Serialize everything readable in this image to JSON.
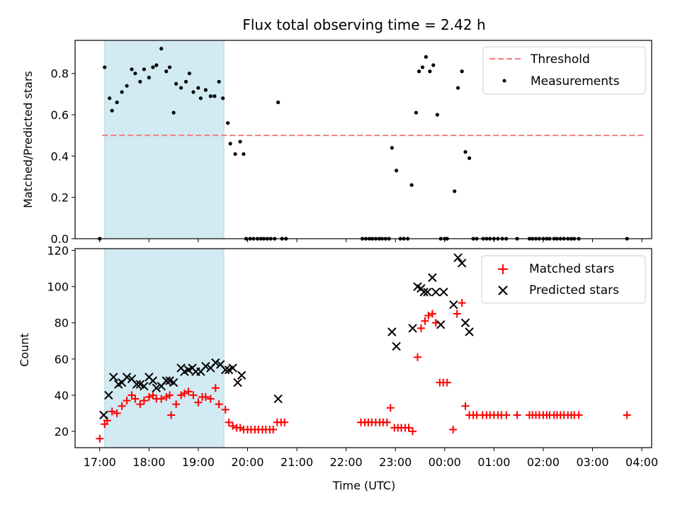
{
  "figure": {
    "title": "Flux total observing time = 2.42 h",
    "x_tick_labels": [
      "17:00",
      "18:00",
      "19:00",
      "20:00",
      "21:00",
      "22:00",
      "23:00",
      "00:00",
      "01:00",
      "02:00",
      "03:00",
      "04:00"
    ],
    "xlabel": "Time (UTC)",
    "colors": {
      "threshold": "#f27c7c",
      "measurements": "#000000",
      "matched": "#ff0000",
      "predicted": "#000000",
      "span": "#add8e6"
    }
  },
  "chart_data": [
    {
      "type": "scatter",
      "ylabel": "Matched/Predicted stars",
      "xlim": [
        16.5,
        28.2
      ],
      "ylim": [
        0,
        0.96
      ],
      "yticks": [
        "0.0",
        "0.2",
        "0.4",
        "0.6",
        "0.8"
      ],
      "ytick_values": [
        0,
        0.2,
        0.4,
        0.6,
        0.8
      ],
      "highlight_span": [
        17.1,
        19.52
      ],
      "legend": {
        "placement": "upper right",
        "entries": [
          "Threshold",
          "Measurements"
        ]
      },
      "series": [
        {
          "name": "Threshold",
          "kind": "line",
          "x": [
            17.05,
            28.05
          ],
          "y": [
            0.5,
            0.5
          ]
        },
        {
          "name": "Measurements",
          "kind": "scatter",
          "points": [
            [
              17.0,
              0.0
            ],
            [
              17.1,
              0.83
            ],
            [
              17.2,
              0.68
            ],
            [
              17.25,
              0.62
            ],
            [
              17.35,
              0.66
            ],
            [
              17.45,
              0.71
            ],
            [
              17.55,
              0.74
            ],
            [
              17.65,
              0.82
            ],
            [
              17.72,
              0.8
            ],
            [
              17.82,
              0.76
            ],
            [
              17.9,
              0.82
            ],
            [
              18.0,
              0.78
            ],
            [
              18.08,
              0.83
            ],
            [
              18.15,
              0.84
            ],
            [
              18.25,
              0.92
            ],
            [
              18.35,
              0.81
            ],
            [
              18.42,
              0.83
            ],
            [
              18.5,
              0.61
            ],
            [
              18.55,
              0.75
            ],
            [
              18.65,
              0.73
            ],
            [
              18.75,
              0.76
            ],
            [
              18.82,
              0.8
            ],
            [
              18.9,
              0.71
            ],
            [
              19.0,
              0.73
            ],
            [
              19.05,
              0.68
            ],
            [
              19.15,
              0.72
            ],
            [
              19.25,
              0.69
            ],
            [
              19.33,
              0.69
            ],
            [
              19.42,
              0.76
            ],
            [
              19.5,
              0.68
            ],
            [
              19.6,
              0.56
            ],
            [
              19.65,
              0.46
            ],
            [
              19.75,
              0.41
            ],
            [
              19.85,
              0.47
            ],
            [
              19.92,
              0.41
            ],
            [
              19.97,
              0.0
            ],
            [
              20.05,
              0.0
            ],
            [
              20.12,
              0.0
            ],
            [
              20.2,
              0.0
            ],
            [
              20.27,
              0.0
            ],
            [
              20.33,
              0.0
            ],
            [
              20.4,
              0.0
            ],
            [
              20.47,
              0.0
            ],
            [
              20.55,
              0.0
            ],
            [
              20.62,
              0.66
            ],
            [
              20.7,
              0.0
            ],
            [
              20.78,
              0.0
            ],
            [
              22.33,
              0.0
            ],
            [
              22.4,
              0.0
            ],
            [
              22.47,
              0.0
            ],
            [
              22.53,
              0.0
            ],
            [
              22.6,
              0.0
            ],
            [
              22.67,
              0.0
            ],
            [
              22.73,
              0.0
            ],
            [
              22.8,
              0.0
            ],
            [
              22.87,
              0.0
            ],
            [
              22.93,
              0.44
            ],
            [
              23.02,
              0.33
            ],
            [
              23.1,
              0.0
            ],
            [
              23.17,
              0.0
            ],
            [
              23.25,
              0.0
            ],
            [
              23.33,
              0.26
            ],
            [
              23.42,
              0.61
            ],
            [
              23.48,
              0.81
            ],
            [
              23.55,
              0.83
            ],
            [
              23.62,
              0.88
            ],
            [
              23.7,
              0.81
            ],
            [
              23.77,
              0.84
            ],
            [
              23.85,
              0.6
            ],
            [
              23.92,
              0.0
            ],
            [
              24.0,
              0.0
            ],
            [
              24.05,
              0.0
            ],
            [
              24.2,
              0.23
            ],
            [
              24.27,
              0.73
            ],
            [
              24.35,
              0.81
            ],
            [
              24.42,
              0.42
            ],
            [
              24.5,
              0.39
            ],
            [
              24.58,
              0.0
            ],
            [
              24.65,
              0.0
            ],
            [
              24.78,
              0.0
            ],
            [
              24.85,
              0.0
            ],
            [
              24.92,
              0.0
            ],
            [
              25.0,
              0.0
            ],
            [
              25.08,
              0.0
            ],
            [
              25.17,
              0.0
            ],
            [
              25.25,
              0.0
            ],
            [
              25.47,
              0.0
            ],
            [
              25.72,
              0.0
            ],
            [
              25.78,
              0.0
            ],
            [
              25.85,
              0.0
            ],
            [
              25.92,
              0.0
            ],
            [
              26.0,
              0.0
            ],
            [
              26.07,
              0.0
            ],
            [
              26.13,
              0.0
            ],
            [
              26.22,
              0.0
            ],
            [
              26.28,
              0.0
            ],
            [
              26.35,
              0.0
            ],
            [
              26.42,
              0.0
            ],
            [
              26.5,
              0.0
            ],
            [
              26.57,
              0.0
            ],
            [
              26.63,
              0.0
            ],
            [
              26.72,
              0.0
            ],
            [
              27.7,
              0.0
            ]
          ]
        }
      ]
    },
    {
      "type": "scatter",
      "ylabel": "Count",
      "xlim": [
        16.5,
        28.2
      ],
      "ylim": [
        11,
        121
      ],
      "yticks": [
        "20",
        "40",
        "60",
        "80",
        "100",
        "120"
      ],
      "ytick_values": [
        20,
        40,
        60,
        80,
        100,
        120
      ],
      "highlight_span": [
        17.1,
        19.52
      ],
      "legend": {
        "placement": "upper right",
        "entries": [
          "Matched stars",
          "Predicted stars"
        ]
      },
      "series": [
        {
          "name": "Matched stars",
          "marker": "plus",
          "points": [
            [
              17.0,
              16
            ],
            [
              17.1,
              24
            ],
            [
              17.15,
              26
            ],
            [
              17.25,
              31
            ],
            [
              17.35,
              30
            ],
            [
              17.45,
              34
            ],
            [
              17.55,
              37
            ],
            [
              17.65,
              40
            ],
            [
              17.72,
              38
            ],
            [
              17.82,
              35
            ],
            [
              17.9,
              37
            ],
            [
              18.0,
              39
            ],
            [
              18.08,
              40
            ],
            [
              18.15,
              38
            ],
            [
              18.25,
              38
            ],
            [
              18.35,
              39
            ],
            [
              18.42,
              40
            ],
            [
              18.45,
              29
            ],
            [
              18.55,
              35
            ],
            [
              18.65,
              40
            ],
            [
              18.72,
              41
            ],
            [
              18.8,
              42
            ],
            [
              18.9,
              40
            ],
            [
              19.0,
              36
            ],
            [
              19.08,
              39
            ],
            [
              19.15,
              39
            ],
            [
              19.25,
              38
            ],
            [
              19.35,
              44
            ],
            [
              19.42,
              35
            ],
            [
              19.55,
              32
            ],
            [
              19.62,
              25
            ],
            [
              19.7,
              23
            ],
            [
              19.78,
              22
            ],
            [
              19.85,
              22
            ],
            [
              19.92,
              21
            ],
            [
              20.0,
              21
            ],
            [
              20.07,
              21
            ],
            [
              20.15,
              21
            ],
            [
              20.22,
              21
            ],
            [
              20.3,
              21
            ],
            [
              20.37,
              21
            ],
            [
              20.45,
              21
            ],
            [
              20.52,
              21
            ],
            [
              20.6,
              25
            ],
            [
              20.68,
              25
            ],
            [
              20.75,
              25
            ],
            [
              22.3,
              25
            ],
            [
              22.38,
              25
            ],
            [
              22.45,
              25
            ],
            [
              22.52,
              25
            ],
            [
              22.6,
              25
            ],
            [
              22.68,
              25
            ],
            [
              22.75,
              25
            ],
            [
              22.83,
              25
            ],
            [
              22.9,
              33
            ],
            [
              22.98,
              22
            ],
            [
              23.05,
              22
            ],
            [
              23.12,
              22
            ],
            [
              23.2,
              22
            ],
            [
              23.27,
              22
            ],
            [
              23.35,
              20
            ],
            [
              23.45,
              61
            ],
            [
              23.52,
              77
            ],
            [
              23.6,
              81
            ],
            [
              23.67,
              84
            ],
            [
              23.75,
              85
            ],
            [
              23.82,
              80
            ],
            [
              23.9,
              47
            ],
            [
              23.97,
              47
            ],
            [
              24.05,
              47
            ],
            [
              24.17,
              21
            ],
            [
              24.25,
              85
            ],
            [
              24.35,
              91
            ],
            [
              24.42,
              34
            ],
            [
              24.5,
              29
            ],
            [
              24.58,
              29
            ],
            [
              24.65,
              29
            ],
            [
              24.77,
              29
            ],
            [
              24.85,
              29
            ],
            [
              24.92,
              29
            ],
            [
              25.0,
              29
            ],
            [
              25.08,
              29
            ],
            [
              25.15,
              29
            ],
            [
              25.25,
              29
            ],
            [
              25.47,
              29
            ],
            [
              25.72,
              29
            ],
            [
              25.78,
              29
            ],
            [
              25.85,
              29
            ],
            [
              25.92,
              29
            ],
            [
              26.0,
              29
            ],
            [
              26.07,
              29
            ],
            [
              26.13,
              29
            ],
            [
              26.22,
              29
            ],
            [
              26.28,
              29
            ],
            [
              26.35,
              29
            ],
            [
              26.42,
              29
            ],
            [
              26.5,
              29
            ],
            [
              26.57,
              29
            ],
            [
              26.63,
              29
            ],
            [
              26.72,
              29
            ],
            [
              27.7,
              29
            ]
          ]
        },
        {
          "name": "Predicted stars",
          "marker": "x",
          "points": [
            [
              17.08,
              29
            ],
            [
              17.18,
              40
            ],
            [
              17.28,
              50
            ],
            [
              17.38,
              46
            ],
            [
              17.45,
              47
            ],
            [
              17.55,
              50
            ],
            [
              17.65,
              49
            ],
            [
              17.75,
              46
            ],
            [
              17.82,
              46
            ],
            [
              17.9,
              45
            ],
            [
              18.0,
              50
            ],
            [
              18.08,
              48
            ],
            [
              18.15,
              44
            ],
            [
              18.25,
              45
            ],
            [
              18.35,
              48
            ],
            [
              18.42,
              48
            ],
            [
              18.5,
              47
            ],
            [
              18.65,
              55
            ],
            [
              18.72,
              53
            ],
            [
              18.8,
              54
            ],
            [
              18.88,
              55
            ],
            [
              18.95,
              53
            ],
            [
              19.05,
              53
            ],
            [
              19.15,
              56
            ],
            [
              19.25,
              55
            ],
            [
              19.35,
              58
            ],
            [
              19.45,
              57
            ],
            [
              19.55,
              54
            ],
            [
              19.62,
              54
            ],
            [
              19.7,
              55
            ],
            [
              19.8,
              47
            ],
            [
              19.88,
              51
            ],
            [
              20.62,
              38
            ],
            [
              22.93,
              75
            ],
            [
              23.02,
              67
            ],
            [
              23.35,
              77
            ],
            [
              23.45,
              100
            ],
            [
              23.52,
              99
            ],
            [
              23.58,
              97
            ],
            [
              23.65,
              97
            ],
            [
              23.75,
              105
            ],
            [
              23.82,
              97
            ],
            [
              23.92,
              79
            ],
            [
              23.98,
              97
            ],
            [
              24.18,
              90
            ],
            [
              24.27,
              116
            ],
            [
              24.35,
              113
            ],
            [
              24.42,
              80
            ],
            [
              24.5,
              75
            ]
          ]
        }
      ]
    }
  ]
}
